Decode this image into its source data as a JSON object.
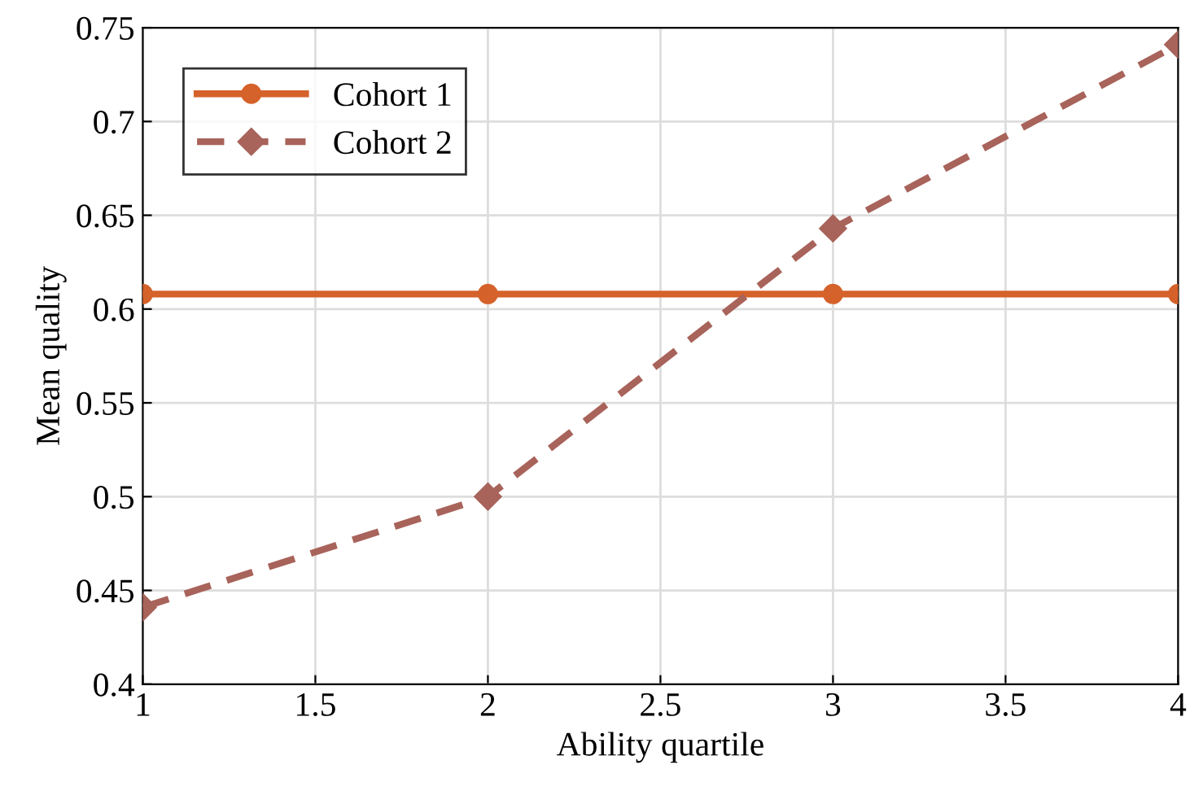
{
  "chart_data": {
    "type": "line",
    "xlabel": "Ability quartile",
    "ylabel": "Mean quality",
    "x": [
      1,
      2,
      3,
      4
    ],
    "series": [
      {
        "name": "Cohort 1",
        "color": "#d5622a",
        "values": [
          0.608,
          0.608,
          0.608,
          0.608
        ],
        "marker": "circle",
        "line_style": "solid"
      },
      {
        "name": "Cohort 2",
        "color": "#a8635a",
        "values": [
          0.441,
          0.5,
          0.643,
          0.741
        ],
        "marker": "diamond",
        "line_style": "dashed"
      }
    ],
    "xlim": [
      1,
      4
    ],
    "xticks": [
      1,
      1.5,
      2,
      2.5,
      3,
      3.5,
      4
    ],
    "ylim": [
      0.4,
      0.75
    ],
    "yticks": [
      0.4,
      0.45,
      0.5,
      0.55,
      0.6,
      0.65,
      0.7,
      0.75
    ],
    "grid": true,
    "legend": "top left"
  }
}
